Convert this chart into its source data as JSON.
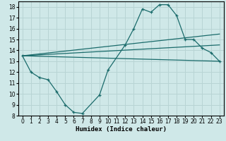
{
  "xlabel": "Humidex (Indice chaleur)",
  "bg_color": "#cfe8e8",
  "grid_color": "#b8d4d4",
  "line_color": "#1a6b6b",
  "xlim": [
    -0.5,
    23.5
  ],
  "ylim": [
    8,
    18.5
  ],
  "yticks": [
    8,
    9,
    10,
    11,
    12,
    13,
    14,
    15,
    16,
    17,
    18
  ],
  "xticks": [
    0,
    1,
    2,
    3,
    4,
    5,
    6,
    7,
    8,
    9,
    10,
    11,
    12,
    13,
    14,
    15,
    16,
    17,
    18,
    19,
    20,
    21,
    22,
    23
  ],
  "line1_x": [
    0,
    1,
    2,
    3,
    4,
    5,
    6,
    7,
    9,
    10,
    12,
    13,
    14,
    15,
    16,
    17,
    18,
    19,
    20,
    21,
    22,
    23
  ],
  "line1_y": [
    13.5,
    12.0,
    11.5,
    11.3,
    10.2,
    9.0,
    8.3,
    8.2,
    9.9,
    12.2,
    14.5,
    16.0,
    17.8,
    17.5,
    18.2,
    18.2,
    17.2,
    15.0,
    15.0,
    14.2,
    13.8,
    13.0
  ],
  "line2_x": [
    0,
    23
  ],
  "line2_y": [
    13.5,
    13.0
  ],
  "line3_x": [
    0,
    23
  ],
  "line3_y": [
    13.5,
    14.5
  ],
  "line4_x": [
    0,
    23
  ],
  "line4_y": [
    13.5,
    15.5
  ]
}
